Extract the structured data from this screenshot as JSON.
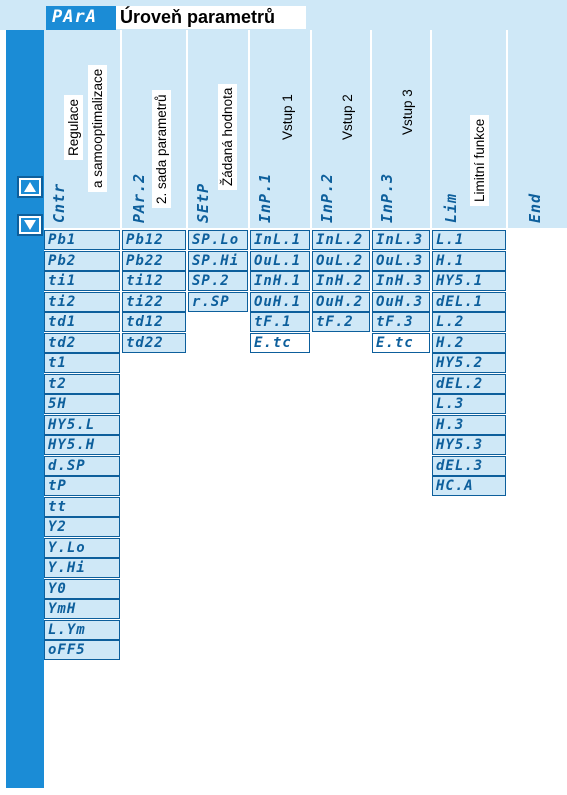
{
  "title": {
    "code": "PArA",
    "text": "Úroveň parametrů"
  },
  "nav": {
    "up_icon": "arrow-up-icon",
    "down_icon": "arrow-down-icon"
  },
  "colors": {
    "accent": "#1b8cd6",
    "cell_bg": "#cfe8f7",
    "border": "#0d5f9c"
  },
  "columns": [
    {
      "id": "cntr",
      "code": "Cntr",
      "label1": "Regulace",
      "label2": "a samooptimalizace",
      "values": [
        "Pb1",
        "Pb2",
        "ti1",
        "ti2",
        "td1",
        "td2",
        "t1",
        "t2",
        "5H",
        "HY5.L",
        "HY5.H",
        "d.SP",
        "tP",
        "tt",
        "Y2",
        "Y.Lo",
        "Y.Hi",
        "Y0",
        "YmH",
        "L.Ym",
        "oFF5"
      ]
    },
    {
      "id": "par2",
      "code": "PAr.2",
      "label1": "2. sada parametrů",
      "values": [
        "Pb12",
        "Pb22",
        "ti12",
        "ti22",
        "td12",
        "td22"
      ]
    },
    {
      "id": "setp",
      "code": "SEtP",
      "label1": "Žádaná hodnota",
      "values": [
        "SP.Lo",
        "SP.Hi",
        "SP.2",
        "r.SP"
      ]
    },
    {
      "id": "inp1",
      "code": "InP.1",
      "label1": "Vstup 1",
      "values": [
        "InL.1",
        "OuL.1",
        "InH.1",
        "OuH.1",
        "tF.1",
        "E.tc"
      ]
    },
    {
      "id": "inp2",
      "code": "InP.2",
      "label1": "Vstup 2",
      "values": [
        "InL.2",
        "OuL.2",
        "InH.2",
        "OuH.2",
        "tF.2"
      ]
    },
    {
      "id": "inp3",
      "code": "InP.3",
      "label1": "Vstup 3",
      "values": [
        "InL.3",
        "OuL.3",
        "InH.3",
        "OuH.3",
        "tF.3",
        "E.tc"
      ]
    },
    {
      "id": "lim",
      "code": "Lim",
      "label1": "Limitní funkce",
      "values": [
        "L.1",
        "H.1",
        "HY5.1",
        "dEL.1",
        "L.2",
        "H.2",
        "HY5.2",
        "dEL.2",
        "L.3",
        "H.3",
        "HY5.3",
        "dEL.3",
        "HC.A"
      ]
    },
    {
      "id": "end",
      "code": "End",
      "label1": "",
      "values": []
    }
  ]
}
